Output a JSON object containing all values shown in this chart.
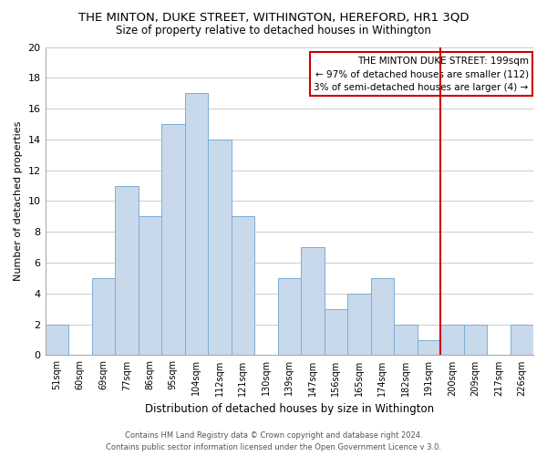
{
  "title": "THE MINTON, DUKE STREET, WITHINGTON, HEREFORD, HR1 3QD",
  "subtitle": "Size of property relative to detached houses in Withington",
  "xlabel": "Distribution of detached houses by size in Withington",
  "ylabel": "Number of detached properties",
  "bin_labels": [
    "51sqm",
    "60sqm",
    "69sqm",
    "77sqm",
    "86sqm",
    "95sqm",
    "104sqm",
    "112sqm",
    "121sqm",
    "130sqm",
    "139sqm",
    "147sqm",
    "156sqm",
    "165sqm",
    "174sqm",
    "182sqm",
    "191sqm",
    "200sqm",
    "209sqm",
    "217sqm",
    "226sqm"
  ],
  "bar_heights": [
    2,
    0,
    5,
    11,
    9,
    15,
    17,
    14,
    9,
    0,
    5,
    7,
    3,
    4,
    5,
    2,
    1,
    2,
    2,
    0,
    2
  ],
  "bar_color": "#c9d9ec",
  "bar_edge_color": "#7aadd4",
  "vline_index": 17,
  "vline_color": "#cc0000",
  "ylim": [
    0,
    20
  ],
  "yticks": [
    0,
    2,
    4,
    6,
    8,
    10,
    12,
    14,
    16,
    18,
    20
  ],
  "annotation_title": "THE MINTON DUKE STREET: 199sqm",
  "annotation_line1": "← 97% of detached houses are smaller (112)",
  "annotation_line2": "3% of semi-detached houses are larger (4) →",
  "footer_line1": "Contains HM Land Registry data © Crown copyright and database right 2024.",
  "footer_line2": "Contains public sector information licensed under the Open Government Licence v 3.0.",
  "background_color": "#ffffff",
  "grid_color": "#cccccc"
}
